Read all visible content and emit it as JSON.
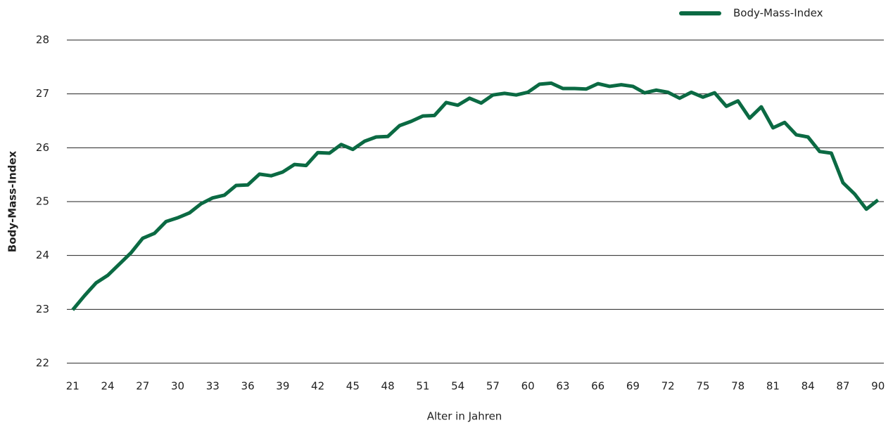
{
  "chart_data": {
    "type": "line",
    "x_label": "Alter in Jahren",
    "y_label": "Body-Mass-Index",
    "x": [
      21,
      22,
      23,
      24,
      25,
      26,
      27,
      28,
      29,
      30,
      31,
      32,
      33,
      34,
      35,
      36,
      37,
      38,
      39,
      40,
      41,
      42,
      43,
      44,
      45,
      46,
      47,
      48,
      49,
      50,
      51,
      52,
      53,
      54,
      55,
      56,
      57,
      58,
      59,
      60,
      61,
      62,
      63,
      64,
      65,
      66,
      67,
      68,
      69,
      70,
      71,
      72,
      73,
      74,
      75,
      76,
      77,
      78,
      79,
      80,
      81,
      82,
      83,
      84,
      85,
      86,
      87,
      88,
      89,
      90
    ],
    "series": [
      {
        "name": "Body-Mass-Index",
        "color": "#0b6a43",
        "values": [
          22.99,
          23.25,
          23.49,
          23.63,
          23.84,
          24.05,
          24.32,
          24.41,
          24.63,
          24.7,
          24.79,
          24.96,
          25.07,
          25.12,
          25.3,
          25.31,
          25.51,
          25.48,
          25.55,
          25.69,
          25.67,
          25.91,
          25.9,
          26.06,
          25.97,
          26.12,
          26.2,
          26.21,
          26.41,
          26.49,
          26.59,
          26.6,
          26.84,
          26.79,
          26.92,
          26.83,
          26.98,
          27.01,
          26.98,
          27.03,
          27.18,
          27.2,
          27.1,
          27.1,
          27.09,
          27.19,
          27.14,
          27.17,
          27.14,
          27.02,
          27.07,
          27.03,
          26.92,
          27.03,
          26.94,
          27.02,
          26.77,
          26.87,
          26.55,
          26.76,
          26.37,
          26.47,
          26.24,
          26.2,
          25.93,
          25.9,
          25.35,
          25.14,
          24.86,
          25.03
        ]
      }
    ],
    "xlim": [
      20.5,
      90.5
    ],
    "xticks": [
      21,
      24,
      27,
      30,
      33,
      36,
      39,
      42,
      45,
      48,
      51,
      54,
      57,
      60,
      63,
      66,
      69,
      72,
      75,
      78,
      81,
      84,
      87,
      90
    ],
    "ylim": [
      22,
      28
    ],
    "yticks": [
      22,
      23,
      24,
      25,
      26,
      27,
      28
    ],
    "grid": true,
    "legend": "top-right"
  }
}
